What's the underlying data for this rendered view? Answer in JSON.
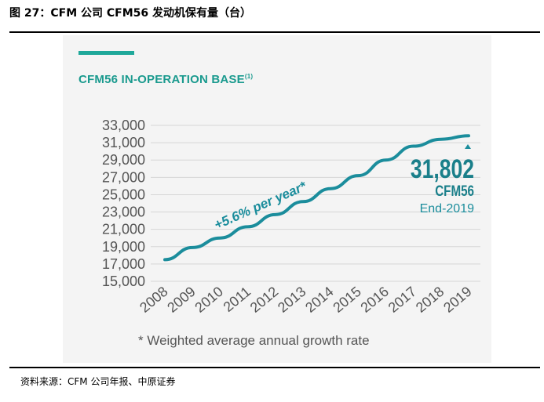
{
  "figure": {
    "title": "图 27：CFM 公司 CFM56 发动机保有量（台）",
    "source": "资料来源：CFM 公司年报、中原证券"
  },
  "chart_data": {
    "type": "line",
    "title": "CFM56 IN-OPERATION BASE",
    "title_note": "(1)",
    "xlabel": "",
    "ylabel": "",
    "x": [
      "2008",
      "2009",
      "2010",
      "2011",
      "2012",
      "2013",
      "2014",
      "2015",
      "2016",
      "2017",
      "2018",
      "2019"
    ],
    "series": [
      {
        "values": [
          17500,
          18900,
          20000,
          21300,
          22700,
          24200,
          25700,
          27200,
          29000,
          30600,
          31400,
          31802
        ]
      }
    ],
    "ylim": [
      15000,
      33000
    ],
    "yticks": [
      "15,000",
      "17,000",
      "19,000",
      "21,000",
      "23,000",
      "25,000",
      "27,000",
      "29,000",
      "31,000",
      "33,000"
    ],
    "grid": "horizontal",
    "annotations": {
      "growth": "+5.6% per year*",
      "value": "31,802",
      "engine": "CFM56",
      "period": "End-2019",
      "footnote": "* Weighted average annual growth rate"
    },
    "colors": {
      "line": "#1b8d9c",
      "title": "#1a9a8e",
      "accent": "#1fa89a",
      "value": "#1a7f8a"
    }
  }
}
